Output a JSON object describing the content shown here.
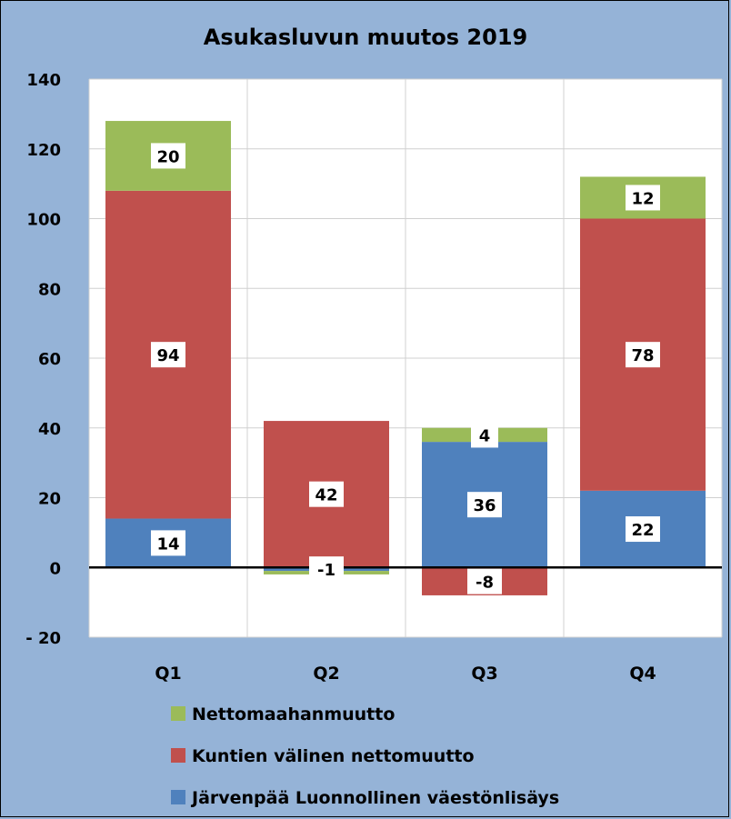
{
  "chart_data": {
    "type": "bar",
    "stacked": true,
    "title": "Asukasluvun muutos 2019",
    "categories": [
      "Q1",
      "Q2",
      "Q3",
      "Q4"
    ],
    "series": [
      {
        "name": "Järvenpää Luonnollinen väestönlisäys",
        "color": "#4f81bd",
        "values": [
          14,
          -1,
          36,
          22
        ]
      },
      {
        "name": "Kuntien välinen nettomuutto",
        "color": "#c0504d",
        "values": [
          94,
          42,
          -8,
          78
        ]
      },
      {
        "name": "Nettomaahanmuutto",
        "color": "#9bbb59",
        "values": [
          20,
          -1,
          4,
          12
        ]
      }
    ],
    "data_labels": [
      {
        "category": "Q1",
        "series": "Nettomaahanmuutto",
        "text": "20"
      },
      {
        "category": "Q1",
        "series": "Kuntien välinen nettomuutto",
        "text": "94"
      },
      {
        "category": "Q1",
        "series": "Järvenpää Luonnollinen väestönlisäys",
        "text": "14"
      },
      {
        "category": "Q2",
        "series": "Kuntien välinen nettomuutto",
        "text": "42"
      },
      {
        "category": "Q2",
        "series": "Järvenpää Luonnollinen väestönlisäys",
        "text": "-1"
      },
      {
        "category": "Q3",
        "series": "Nettomaahanmuutto",
        "text": "4"
      },
      {
        "category": "Q3",
        "series": "Järvenpää Luonnollinen väestönlisäys",
        "text": "36"
      },
      {
        "category": "Q3",
        "series": "Kuntien välinen nettomuutto",
        "text": "-8"
      },
      {
        "category": "Q4",
        "series": "Nettomaahanmuutto",
        "text": "12"
      },
      {
        "category": "Q4",
        "series": "Kuntien välinen nettomuutto",
        "text": "78"
      },
      {
        "category": "Q4",
        "series": "Järvenpää Luonnollinen väestönlisäys",
        "text": "22"
      }
    ],
    "ylim": [
      -20,
      140
    ],
    "yticks": [
      {
        "value": 140,
        "label": "140"
      },
      {
        "value": 120,
        "label": "120"
      },
      {
        "value": 100,
        "label": "100"
      },
      {
        "value": 80,
        "label": "80"
      },
      {
        "value": 60,
        "label": "60"
      },
      {
        "value": 40,
        "label": "40"
      },
      {
        "value": 20,
        "label": "20"
      },
      {
        "value": 0,
        "label": "0"
      },
      {
        "value": -20,
        "label": "- 20",
        "color": "#ff0000"
      }
    ],
    "xlabel": "",
    "ylabel": "",
    "grid": true,
    "legend_position": "bottom",
    "legend_order": [
      "Nettomaahanmuutto",
      "Kuntien välinen nettomuutto",
      "Järvenpää Luonnollinen väestönlisäys"
    ],
    "background_color": "#95b3d7",
    "plot_background_color": "#ffffff"
  }
}
